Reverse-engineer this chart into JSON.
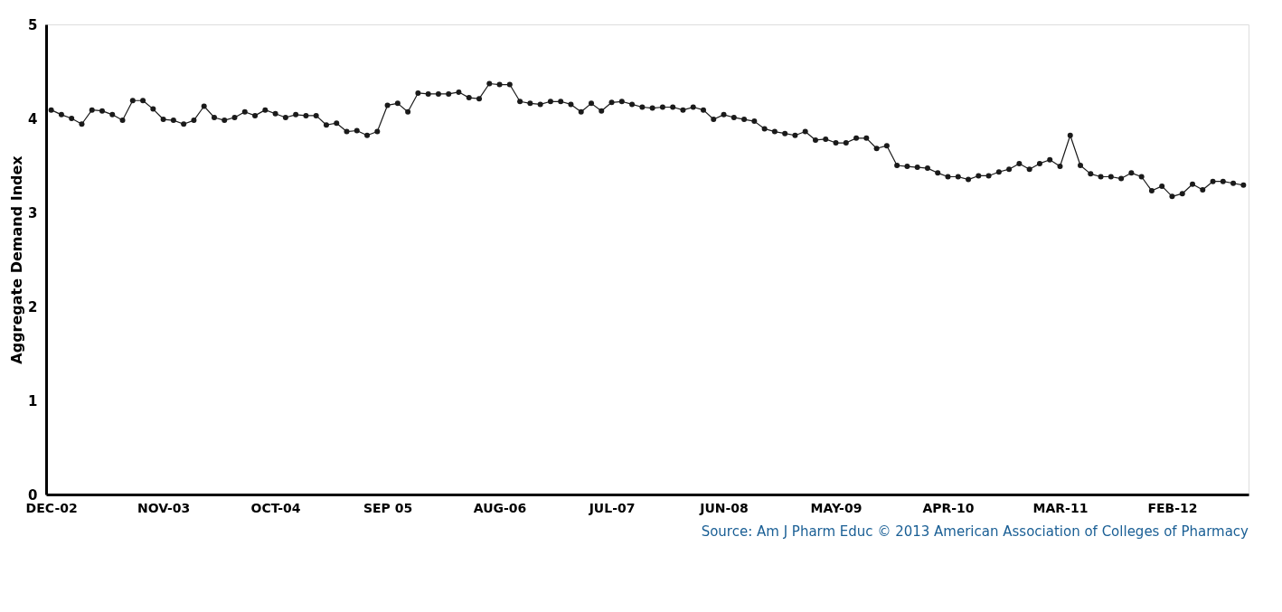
{
  "chart_data": {
    "type": "line",
    "ylabel": "Aggregate Demand Index",
    "ylim": [
      0,
      5
    ],
    "yticks": [
      0,
      1,
      2,
      3,
      4,
      5
    ],
    "grid": false,
    "legend": false,
    "marker": "circle",
    "line_style": "solid",
    "annotations": [
      "Source: Am J Pharm Educ © 2013 American Association of Colleges of Pharmacy"
    ],
    "categories": [
      "DEC-02",
      null,
      null,
      null,
      null,
      null,
      null,
      null,
      null,
      null,
      null,
      "NOV-03",
      null,
      null,
      null,
      null,
      null,
      null,
      null,
      null,
      null,
      null,
      "OCT-04",
      null,
      null,
      null,
      null,
      null,
      null,
      null,
      null,
      null,
      null,
      "SEP 05",
      null,
      null,
      null,
      null,
      null,
      null,
      null,
      null,
      null,
      null,
      "AUG-06",
      null,
      null,
      null,
      null,
      null,
      null,
      null,
      null,
      null,
      null,
      "JUL-07",
      null,
      null,
      null,
      null,
      null,
      null,
      null,
      null,
      null,
      null,
      "JUN-08",
      null,
      null,
      null,
      null,
      null,
      null,
      null,
      null,
      null,
      null,
      "MAY-09",
      null,
      null,
      null,
      null,
      null,
      null,
      null,
      null,
      null,
      null,
      "APR-10",
      null,
      null,
      null,
      null,
      null,
      null,
      null,
      null,
      null,
      null,
      "MAR-11",
      null,
      null,
      null,
      null,
      null,
      null,
      null,
      null,
      null,
      null,
      "FEB-12",
      null,
      null,
      null,
      null,
      null,
      null,
      null
    ],
    "series": [
      {
        "color": "#1a1a1a",
        "values": [
          4.09,
          4.04,
          4.0,
          3.94,
          4.09,
          4.08,
          4.04,
          3.98,
          4.19,
          4.19,
          4.1,
          3.99,
          3.98,
          3.94,
          3.98,
          4.13,
          4.01,
          3.98,
          4.01,
          4.07,
          4.03,
          4.09,
          4.05,
          4.01,
          4.04,
          4.03,
          4.03,
          3.93,
          3.95,
          3.86,
          3.87,
          3.82,
          3.86,
          4.14,
          4.16,
          4.07,
          4.27,
          4.26,
          4.26,
          4.26,
          4.28,
          4.22,
          4.21,
          4.37,
          4.36,
          4.36,
          4.18,
          4.16,
          4.15,
          4.18,
          4.18,
          4.15,
          4.07,
          4.16,
          4.08,
          4.17,
          4.18,
          4.15,
          4.12,
          4.11,
          4.12,
          4.12,
          4.09,
          4.12,
          4.09,
          3.99,
          4.04,
          4.01,
          3.99,
          3.97,
          3.89,
          3.86,
          3.84,
          3.82,
          3.86,
          3.77,
          3.78,
          3.74,
          3.74,
          3.79,
          3.79,
          3.68,
          3.71,
          3.5,
          3.49,
          3.48,
          3.47,
          3.42,
          3.38,
          3.38,
          3.35,
          3.39,
          3.39,
          3.43,
          3.46,
          3.52,
          3.46,
          3.52,
          3.56,
          3.49,
          3.82,
          3.5,
          3.41,
          3.38,
          3.38,
          3.36,
          3.42,
          3.38,
          3.23,
          3.28,
          3.17,
          3.2,
          3.3,
          3.24,
          3.33,
          3.33,
          3.31,
          3.29
        ]
      }
    ]
  }
}
